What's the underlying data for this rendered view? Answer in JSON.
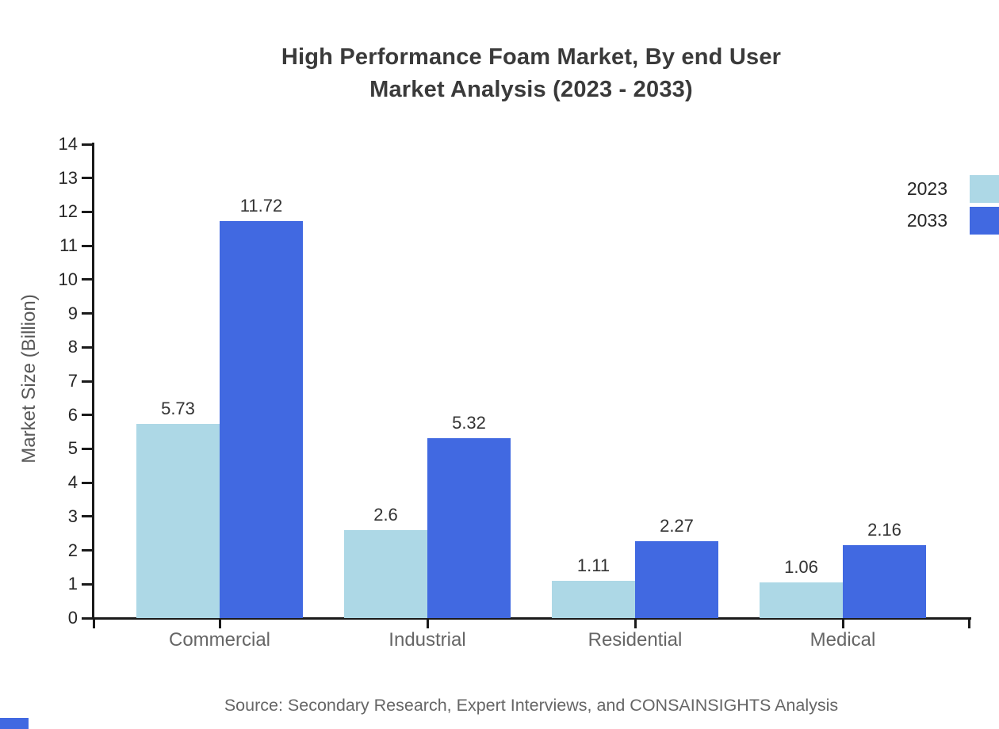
{
  "page": {
    "title_line1": "High Performance Foam Market, By end User",
    "title_line2": "Market Analysis (2023 - 2033)",
    "source_text": "Source: Secondary Research, Expert Interviews, and CONSAINSIGHTS Analysis"
  },
  "chart_data": {
    "type": "bar",
    "title": "High Performance Foam Market, By end User Market Analysis (2023 - 2033)",
    "categories": [
      "Commercial",
      "Industrial",
      "Residential",
      "Medical"
    ],
    "series": [
      {
        "name": "2023",
        "color": "#ADD8E6",
        "values": [
          5.73,
          2.6,
          1.11,
          1.06
        ],
        "labels": [
          "5.73",
          "2.6",
          "1.11",
          "1.06"
        ]
      },
      {
        "name": "2033",
        "color": "#4169E1",
        "values": [
          11.72,
          5.32,
          2.27,
          2.16
        ],
        "labels": [
          "11.72",
          "5.32",
          "2.27",
          "2.16"
        ]
      }
    ],
    "xlabel": "",
    "ylabel": "Market Size (Billion)",
    "ylim": [
      0,
      14
    ],
    "ytick_step": 1,
    "grid": false,
    "legend_position": "top-right",
    "bar_value_labels": true
  },
  "colors": {
    "series_2023": "#ADD8E6",
    "series_2033": "#4169E1",
    "axis": "#1a1a1a",
    "corner_mark": "#4169E1"
  }
}
